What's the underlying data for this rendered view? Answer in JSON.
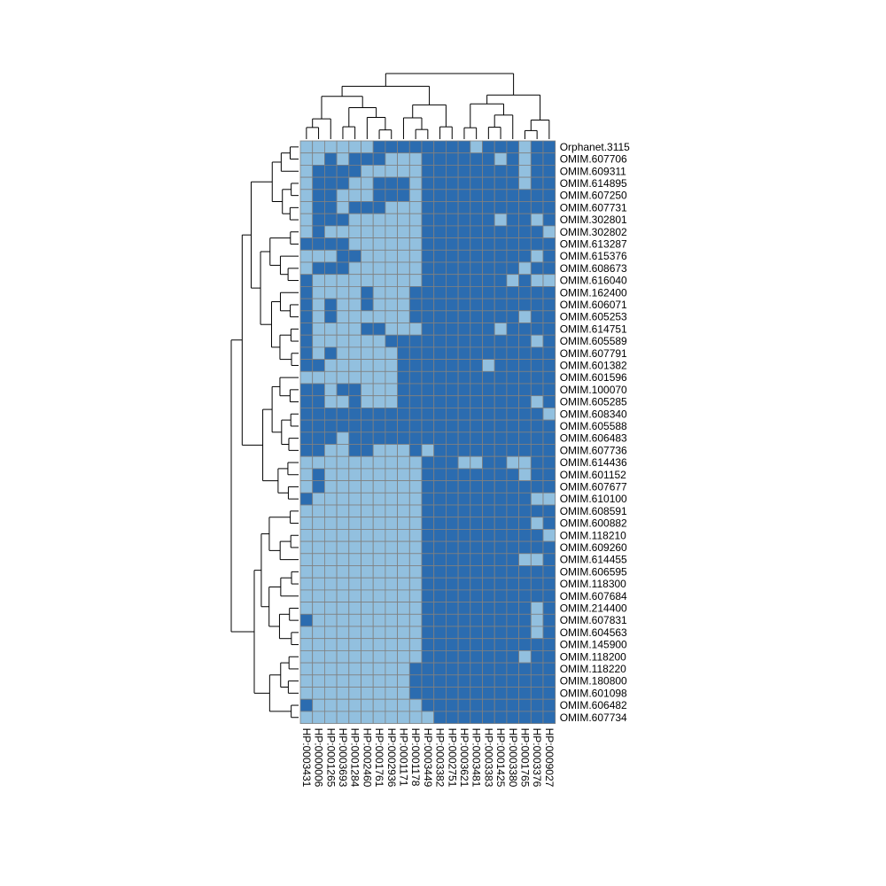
{
  "chart_data": {
    "type": "heatmap",
    "rows": [
      "Orphanet.3115",
      "OMIM.607706",
      "OMIM.609311",
      "OMIM.614895",
      "OMIM.607250",
      "OMIM.607731",
      "OMIM.302801",
      "OMIM.302802",
      "OMIM.613287",
      "OMIM.615376",
      "OMIM.608673",
      "OMIM.616040",
      "OMIM.162400",
      "OMIM.606071",
      "OMIM.605253",
      "OMIM.614751",
      "OMIM.605589",
      "OMIM.607791",
      "OMIM.601382",
      "OMIM.601596",
      "OMIM.100070",
      "OMIM.605285",
      "OMIM.608340",
      "OMIM.605588",
      "OMIM.606483",
      "OMIM.607736",
      "OMIM.614436",
      "OMIM.601152",
      "OMIM.607677",
      "OMIM.610100",
      "OMIM.608591",
      "OMIM.600882",
      "OMIM.118210",
      "OMIM.609260",
      "OMIM.614455",
      "OMIM.606595",
      "OMIM.118300",
      "OMIM.607684",
      "OMIM.214400",
      "OMIM.607831",
      "OMIM.604563",
      "OMIM.145900",
      "OMIM.118200",
      "OMIM.118220",
      "OMIM.180800",
      "OMIM.601098",
      "OMIM.606482",
      "OMIM.607734"
    ],
    "columns": [
      "HP:0003431",
      "HP:0000006",
      "HP:0001265",
      "HP:0003693",
      "HP:0001284",
      "HP:0002460",
      "HP:0001761",
      "HP:0002936",
      "HP:0001171",
      "HP:0001178",
      "HP:0003449",
      "HP:0003382",
      "HP:0002751",
      "HP:0003621",
      "HP:0003481",
      "HP:0003383",
      "HP:0001425",
      "HP:0003380",
      "HP:0001765",
      "HP:0003376",
      "HP:0009027"
    ],
    "matrix": [
      "000000111111110111011",
      "001011100011111101011",
      "011110000011111111011",
      "011100111011111111011",
      "011000111011111111111",
      "011011100011111111111",
      "011100000011111101101",
      "010000000011111111110",
      "111100000011111111111",
      "000110000011111111101",
      "011100000011111111011",
      "100000000011111110100",
      "100001000111111111111",
      "101001000111111111111",
      "101000000111111111011",
      "100001100011111101111",
      "100000011111111111101",
      "101000001111111111111",
      "110000001111111011111",
      "000000001111111111111",
      "110110001111111111111",
      "110010001111111111101",
      "111111111111111111110",
      "111111111111111111111",
      "111011111111111111111",
      "110011000101111111111",
      "000000000011100110011",
      "010000000011111111011",
      "010000000011111111111",
      "100000000011111111100",
      "000000000011111111111",
      "000000000011111111101",
      "000000000011111111110",
      "000000000011111111111",
      "000000000011111111001",
      "000000000011111111111",
      "000000000011111111111",
      "000000000011111111111",
      "000000000011111111101",
      "100000000011111111101",
      "000000000011111111101",
      "000000000011111111111",
      "000000000011111111011",
      "000000000111111111111",
      "000000000111111111111",
      "000000000111111111111",
      "100000000011111111111",
      "000000000001111111111"
    ]
  }
}
